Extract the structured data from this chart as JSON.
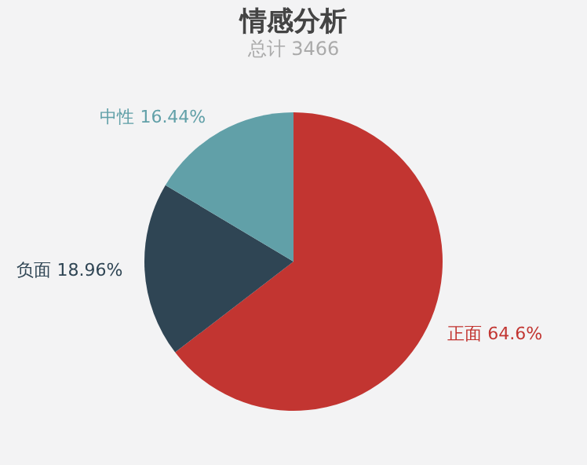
{
  "chart_data": {
    "type": "pie",
    "title": "情感分析",
    "subtitle": "总计 3466",
    "categories": [
      "正面",
      "负面",
      "中性"
    ],
    "values": [
      64.6,
      18.96,
      16.44
    ],
    "colors": [
      "#c23531",
      "#2f4554",
      "#61a0a8"
    ],
    "value_labels": [
      "64.6%",
      "18.96%",
      "16.44%"
    ],
    "legend": false
  }
}
